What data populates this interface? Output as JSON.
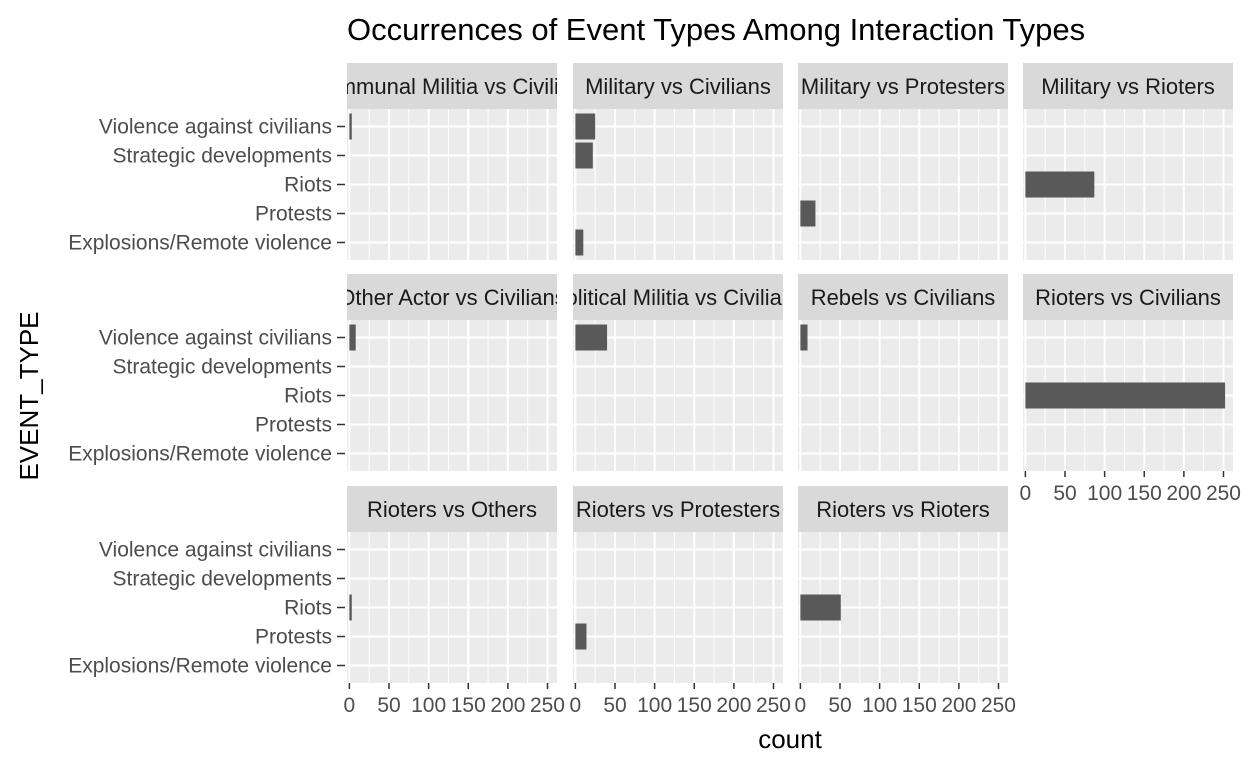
{
  "chart_data": {
    "type": "bar",
    "title": "Occurrences of Event Types Among Interaction Types",
    "xlabel": "count",
    "ylabel": "EVENT_TYPE",
    "xlim": [
      -3,
      262
    ],
    "xticks": [
      0,
      50,
      100,
      150,
      200,
      250
    ],
    "xtick_labels": [
      "0",
      "50",
      "100",
      "150",
      "200",
      "250"
    ],
    "categories": [
      "Violence against civilians",
      "Strategic developments",
      "Riots",
      "Protests",
      "Explosions/Remote violence"
    ],
    "grid": true,
    "bar_color": "#595959",
    "panel_color": "#ebebeb",
    "strip_color": "#d9d9d9",
    "facets": [
      {
        "name": "Communal Militia vs Civilians",
        "values": [
          3,
          0,
          0,
          0,
          0
        ]
      },
      {
        "name": "Military vs Civilians",
        "values": [
          25,
          22,
          0,
          0,
          10
        ]
      },
      {
        "name": "Military vs Protesters",
        "values": [
          0,
          0,
          0,
          19,
          0
        ]
      },
      {
        "name": "Military vs Rioters",
        "values": [
          0,
          0,
          87,
          0,
          0
        ]
      },
      {
        "name": "Other Actor vs Civilians",
        "values": [
          8,
          0,
          0,
          0,
          0
        ]
      },
      {
        "name": "Political Militia vs Civilians",
        "values": [
          40,
          0,
          0,
          0,
          0
        ]
      },
      {
        "name": "Rebels vs Civilians",
        "values": [
          9,
          0,
          0,
          0,
          0
        ]
      },
      {
        "name": "Rioters vs Civilians",
        "values": [
          0,
          0,
          252,
          0,
          0
        ]
      },
      {
        "name": "Rioters vs Others",
        "values": [
          0,
          0,
          3,
          0,
          0
        ]
      },
      {
        "name": "Rioters vs Protesters",
        "values": [
          0,
          0,
          0,
          14,
          0
        ]
      },
      {
        "name": "Rioters vs Rioters",
        "values": [
          0,
          0,
          51,
          0,
          0
        ]
      }
    ]
  }
}
